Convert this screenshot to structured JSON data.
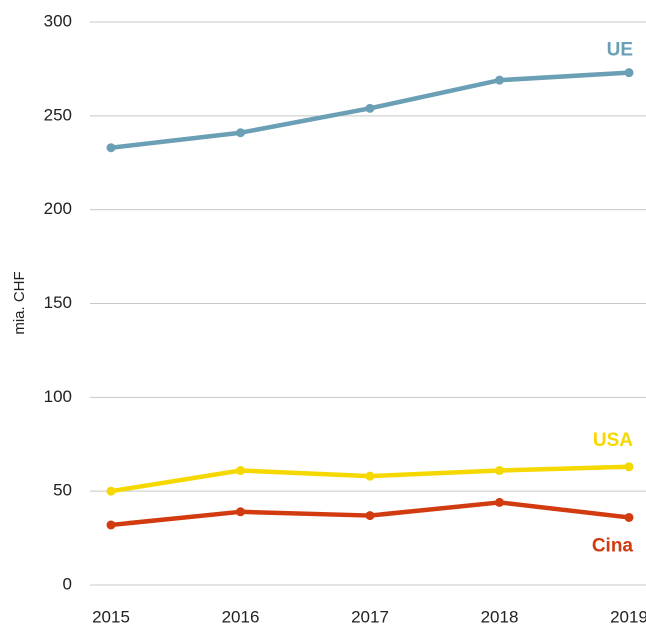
{
  "chart_data": {
    "type": "line",
    "y_label": "mia. CHF",
    "x": [
      "2015",
      "2016",
      "2017",
      "2018",
      "2019"
    ],
    "series": [
      {
        "name": "UE",
        "color": "#6a9fb5",
        "values": [
          233,
          241,
          254,
          269,
          273
        ]
      },
      {
        "name": "USA",
        "color": "#f5d800",
        "values": [
          50,
          61,
          58,
          61,
          63
        ]
      },
      {
        "name": "Cina",
        "color": "#d23a10",
        "values": [
          32,
          39,
          37,
          44,
          36
        ]
      }
    ],
    "ylim": [
      0,
      300
    ],
    "yticks": [
      0,
      50,
      100,
      150,
      200,
      250,
      300
    ],
    "grid": true
  }
}
